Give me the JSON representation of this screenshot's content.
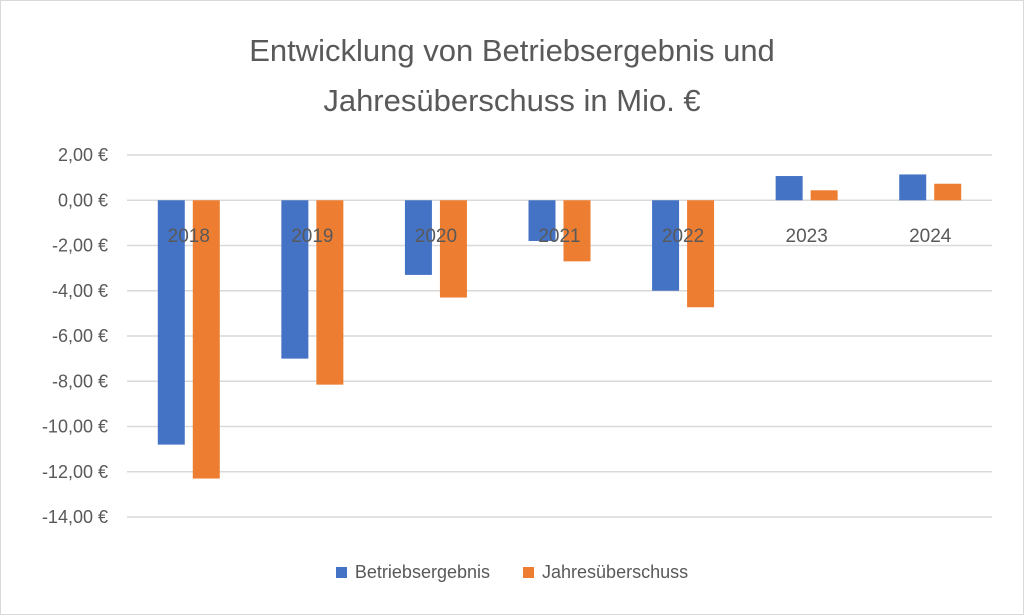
{
  "chart_data": {
    "type": "bar",
    "title_lines": [
      "Entwicklung von Betriebsergebnis und",
      "Jahresüberschuss in Mio. €"
    ],
    "categories": [
      "2018",
      "2019",
      "2020",
      "2021",
      "2022",
      "2023",
      "2024"
    ],
    "series": [
      {
        "name": "Betriebsergebnis",
        "color": "#4472C4",
        "values": [
          -10.8,
          -7.0,
          -3.3,
          -1.8,
          -4.0,
          1.07,
          1.14
        ]
      },
      {
        "name": "Jahresüberschuss",
        "color": "#ED7D31",
        "values": [
          -12.3,
          -8.15,
          -4.3,
          -2.7,
          -4.73,
          0.44,
          0.73
        ]
      }
    ],
    "ylim": [
      -14,
      2
    ],
    "yticks": [
      2,
      0,
      -2,
      -4,
      -6,
      -8,
      -10,
      -12,
      -14
    ],
    "ytick_labels": [
      "2,00 €",
      "0,00 €",
      "-2,00 €",
      "-4,00 €",
      "-6,00 €",
      "-8,00 €",
      "-10,00 €",
      "-12,00 €",
      "-14,00 €"
    ],
    "xlabel": "",
    "ylabel": "",
    "grid": true,
    "legend_position": "bottom"
  }
}
